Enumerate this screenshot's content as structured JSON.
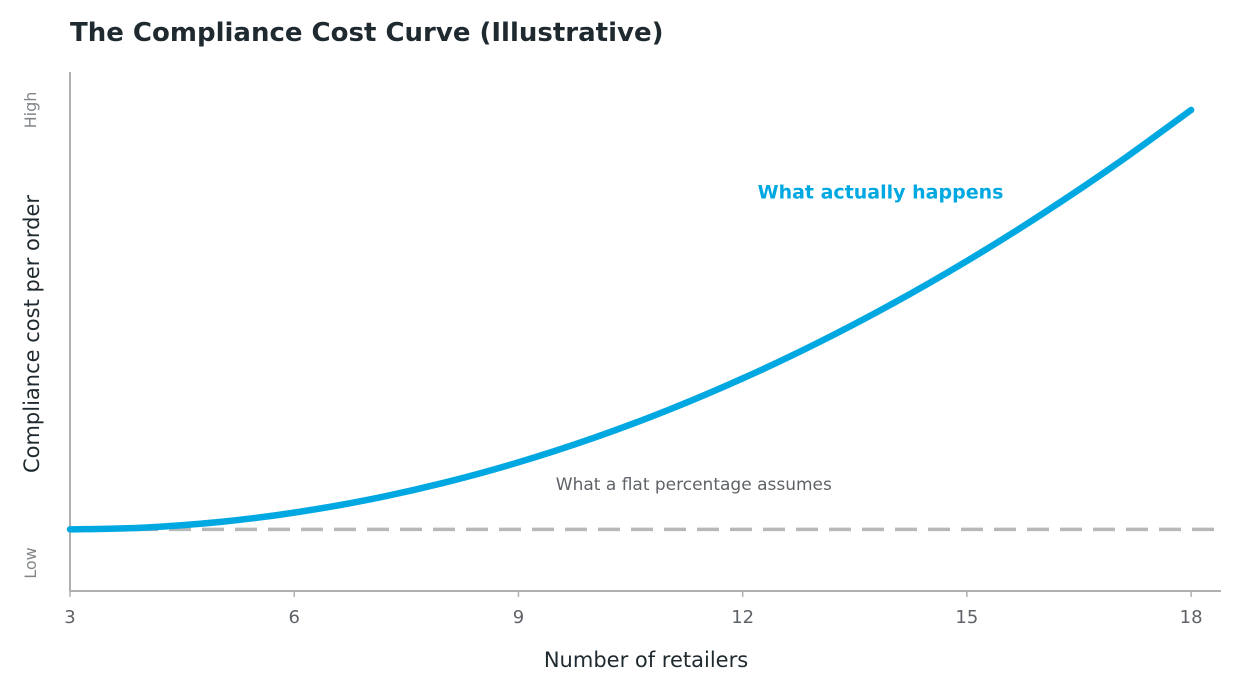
{
  "chart_data": {
    "type": "line",
    "title": "The Compliance Cost Curve (Illustrative)",
    "xlabel": "Number of retailers",
    "ylabel": "Compliance cost per order",
    "xlim": [
      3,
      18.4
    ],
    "ylim": [
      0,
      1
    ],
    "x_ticks": [
      3,
      6,
      9,
      12,
      15,
      18
    ],
    "y_tick_labels": {
      "low": "Low",
      "high": "High"
    },
    "grid": false,
    "series": [
      {
        "key": "actual",
        "name": "What actually happens",
        "color": "#00a8e1",
        "style": "solid",
        "x": [
          3,
          4,
          5,
          6,
          7,
          8,
          9,
          10,
          11,
          12,
          13,
          14,
          15,
          16,
          17,
          18
        ],
        "y": [
          0.13,
          0.134,
          0.146,
          0.166,
          0.194,
          0.23,
          0.274,
          0.326,
          0.386,
          0.454,
          0.53,
          0.614,
          0.706,
          0.806,
          0.914,
          1.03
        ]
      },
      {
        "key": "flat",
        "name": "What a flat percentage assumes",
        "color": "#b8b8b8",
        "style": "dashed",
        "x": [
          3,
          18.4
        ],
        "y": [
          0.13,
          0.13
        ]
      }
    ],
    "annotations": [
      {
        "key": "actual",
        "text": "What actually happens",
        "x": 12.2,
        "y": 0.84
      },
      {
        "key": "flat",
        "text": "What a flat percentage assumes",
        "x": 9.5,
        "y": 0.215
      }
    ]
  }
}
